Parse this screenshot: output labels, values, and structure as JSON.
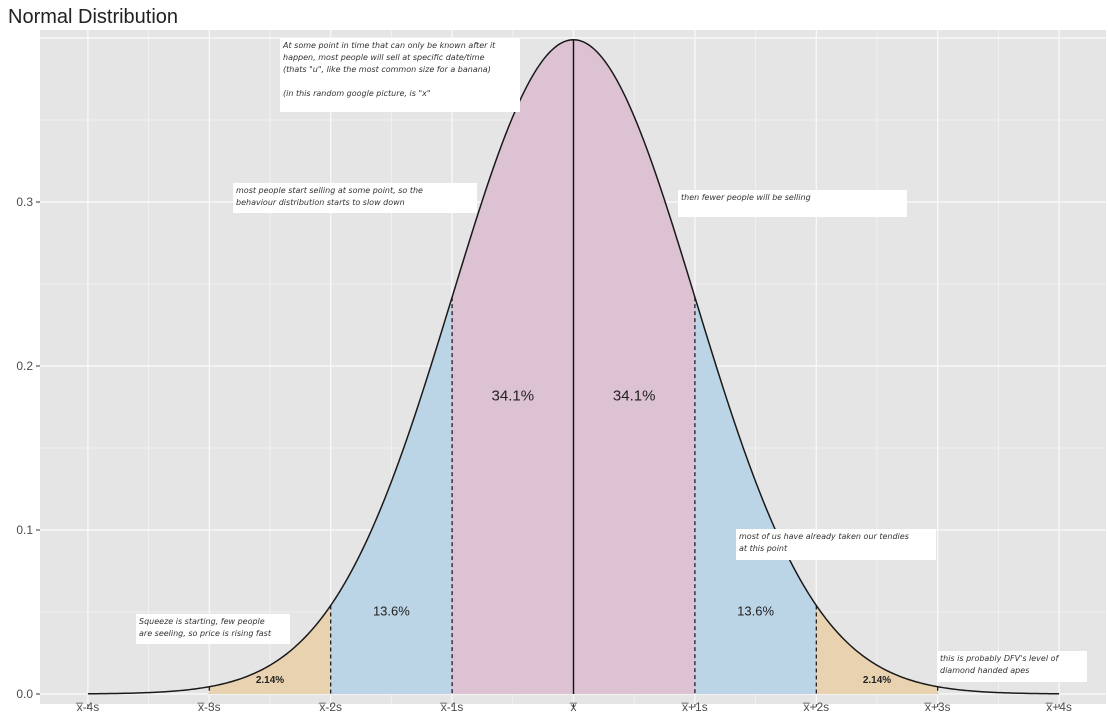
{
  "chart_data": {
    "type": "area",
    "title": "Normal Distribution",
    "xlabel": "",
    "ylabel": "",
    "grid": true,
    "xlim": [
      -4,
      4
    ],
    "ylim": [
      0,
      0.4
    ],
    "y_ticks": [
      0.0,
      0.1,
      0.2,
      0.3
    ],
    "y_tick_labels": [
      "0.0",
      "0.1",
      "0.2",
      "0.3"
    ],
    "x_ticks": [
      -4,
      -3,
      -2,
      -1,
      0,
      1,
      2,
      3,
      4
    ],
    "x_tick_labels": [
      "x̅-4s",
      "x̅-3s",
      "x̅-2s",
      "x̅-1s",
      "x̅",
      "x̅+1s",
      "x̅+2s",
      "x̅+3s",
      "x̅+4s"
    ],
    "curve": {
      "name": "",
      "formula": "standard normal density",
      "peak": 0.399,
      "points": [
        {
          "x": -4,
          "y": 0.0001
        },
        {
          "x": -3,
          "y": 0.0044
        },
        {
          "x": -2,
          "y": 0.054
        },
        {
          "x": -1,
          "y": 0.242
        },
        {
          "x": 0,
          "y": 0.399
        },
        {
          "x": 1,
          "y": 0.242
        },
        {
          "x": 2,
          "y": 0.054
        },
        {
          "x": 3,
          "y": 0.0044
        },
        {
          "x": 4,
          "y": 0.0001
        }
      ]
    },
    "regions": [
      {
        "from": -3,
        "to": -2,
        "label": "2.14%",
        "value": 2.14,
        "color": "#e8d2b0"
      },
      {
        "from": -2,
        "to": -1,
        "label": "13.6%",
        "value": 13.6,
        "color": "#bcd5e6"
      },
      {
        "from": -1,
        "to": 0,
        "label": "34.1%",
        "value": 34.1,
        "color": "#dcc2d3"
      },
      {
        "from": 0,
        "to": 1,
        "label": "34.1%",
        "value": 34.1,
        "color": "#dcc2d3"
      },
      {
        "from": 1,
        "to": 2,
        "label": "13.6%",
        "value": 13.6,
        "color": "#bcd5e6"
      },
      {
        "from": 2,
        "to": 3,
        "label": "2.14%",
        "value": 2.14,
        "color": "#e8d2b0"
      }
    ],
    "annotations": [
      {
        "lines": [
          "At some point in time that can only be known after it",
          "happen, most people will sell at specific date/time",
          "(thats \"u\", like the most common size for a banana)",
          "",
          "(in this random google picture, is \"x\""
        ]
      },
      {
        "lines": [
          "most people start selling at some point, so the",
          "behaviour distribution starts to slow down"
        ]
      },
      {
        "lines": [
          "then fewer people will be selling"
        ]
      },
      {
        "lines": [
          "most of us have already taken our tendies",
          "at this point"
        ]
      },
      {
        "lines": [
          "Squeeze is starting, few people",
          "are seeling, so price is rising fast"
        ]
      },
      {
        "lines": [
          "this is probably DFV's level of",
          "diamond handed apes"
        ]
      }
    ],
    "colors": {
      "panel": "#e5e5e5",
      "grid": "#f8f8f8",
      "curve": "#1a1a1a"
    }
  }
}
